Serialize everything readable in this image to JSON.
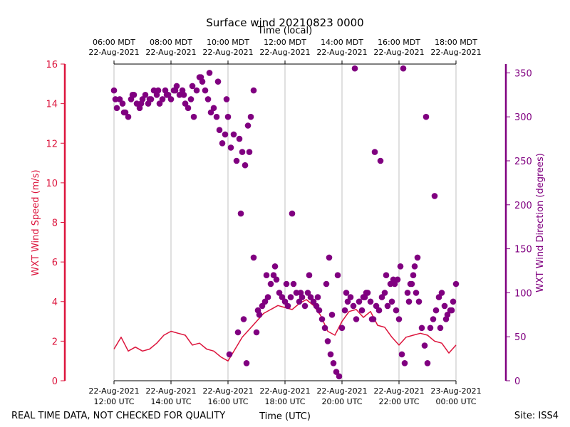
{
  "chart_data": {
    "type": "scatter",
    "title": "Surface wind 20210823 0000",
    "top_axis_label": "Time (local)",
    "xlabel": "Time (UTC)",
    "ylabel_left": "WXT Wind Speed (m/s)",
    "ylabel_right": "WXT Wind Direction (degrees)",
    "footer_left": "REAL TIME DATA, NOT CHECKED FOR QUALITY",
    "footer_right": "Site: ISS4",
    "xlim_hours_utc": [
      12,
      24
    ],
    "ylim_left": [
      0,
      16
    ],
    "ylim_right": [
      0,
      360
    ],
    "colors": {
      "speed": "#dc143c",
      "direction": "#800080",
      "grid": "#b0b0b0"
    },
    "left_ticks": [
      "0",
      "2",
      "4",
      "6",
      "8",
      "10",
      "12",
      "14",
      "16"
    ],
    "right_ticks": [
      "0",
      "50",
      "100",
      "150",
      "200",
      "250",
      "300",
      "350"
    ],
    "bottom_ticks": [
      {
        "hour": 12,
        "date": "22-Aug-2021",
        "time": "12:00 UTC"
      },
      {
        "hour": 14,
        "date": "22-Aug-2021",
        "time": "14:00 UTC"
      },
      {
        "hour": 16,
        "date": "22-Aug-2021",
        "time": "16:00 UTC"
      },
      {
        "hour": 18,
        "date": "22-Aug-2021",
        "time": "18:00 UTC"
      },
      {
        "hour": 20,
        "date": "22-Aug-2021",
        "time": "20:00 UTC"
      },
      {
        "hour": 22,
        "date": "22-Aug-2021",
        "time": "22:00 UTC"
      },
      {
        "hour": 24,
        "date": "23-Aug-2021",
        "time": "00:00 UTC"
      }
    ],
    "top_ticks": [
      {
        "hour": 12,
        "time": "06:00 MDT",
        "date": "22-Aug-2021"
      },
      {
        "hour": 14,
        "time": "08:00 MDT",
        "date": "22-Aug-2021"
      },
      {
        "hour": 16,
        "time": "10:00 MDT",
        "date": "22-Aug-2021"
      },
      {
        "hour": 18,
        "time": "12:00 MDT",
        "date": "22-Aug-2021"
      },
      {
        "hour": 20,
        "time": "14:00 MDT",
        "date": "22-Aug-2021"
      },
      {
        "hour": 22,
        "time": "16:00 MDT",
        "date": "22-Aug-2021"
      },
      {
        "hour": 24,
        "time": "18:00 MDT",
        "date": "22-Aug-2021"
      }
    ],
    "speed_series": {
      "name": "WXT Wind Speed",
      "x_hours": [
        12.0,
        12.25,
        12.5,
        12.75,
        13.0,
        13.25,
        13.5,
        13.75,
        14.0,
        14.25,
        14.5,
        14.75,
        15.0,
        15.25,
        15.5,
        15.75,
        16.0,
        16.25,
        16.5,
        16.75,
        17.0,
        17.25,
        17.5,
        17.75,
        18.0,
        18.25,
        18.5,
        18.75,
        19.0,
        19.25,
        19.5,
        19.75,
        20.0,
        20.25,
        20.5,
        20.75,
        21.0,
        21.25,
        21.5,
        21.75,
        22.0,
        22.25,
        22.5,
        22.75,
        23.0,
        23.25,
        23.5,
        23.75,
        24.0
      ],
      "values": [
        1.6,
        2.2,
        1.5,
        1.7,
        1.5,
        1.6,
        1.9,
        2.3,
        2.5,
        2.4,
        2.3,
        1.8,
        1.9,
        1.6,
        1.5,
        1.2,
        1.0,
        1.6,
        2.2,
        2.6,
        3.0,
        3.4,
        3.6,
        3.8,
        3.7,
        3.6,
        3.9,
        4.1,
        3.8,
        3.3,
        2.5,
        2.3,
        3.0,
        3.5,
        3.6,
        3.2,
        3.5,
        2.8,
        2.7,
        2.2,
        1.8,
        2.2,
        2.3,
        2.4,
        2.3,
        2.0,
        1.9,
        1.4,
        1.8
      ]
    },
    "direction_series": {
      "name": "WXT Wind Direction",
      "x_hours": [
        12.0,
        12.1,
        12.2,
        12.3,
        12.4,
        12.5,
        12.6,
        12.7,
        12.8,
        12.9,
        13.0,
        13.1,
        13.2,
        13.3,
        13.4,
        13.5,
        13.6,
        13.7,
        13.8,
        13.9,
        14.0,
        14.1,
        14.2,
        14.3,
        14.4,
        14.5,
        14.6,
        14.7,
        14.8,
        14.9,
        15.0,
        15.1,
        15.2,
        15.3,
        15.4,
        15.5,
        15.6,
        15.7,
        15.8,
        15.9,
        16.0,
        16.1,
        16.2,
        16.3,
        16.4,
        16.5,
        16.6,
        16.7,
        16.8,
        16.9,
        17.0,
        17.1,
        17.2,
        17.3,
        17.4,
        17.5,
        17.6,
        17.7,
        17.8,
        17.9,
        18.0,
        18.1,
        18.2,
        18.3,
        18.4,
        18.5,
        18.6,
        18.7,
        18.8,
        18.9,
        19.0,
        19.1,
        19.2,
        19.3,
        19.4,
        19.5,
        19.6,
        19.7,
        19.8,
        19.9,
        20.0,
        20.1,
        20.2,
        20.3,
        20.4,
        20.5,
        20.6,
        20.7,
        20.8,
        20.9,
        21.0,
        21.1,
        21.2,
        21.3,
        21.4,
        21.5,
        21.6,
        21.7,
        21.8,
        21.9,
        22.0,
        22.1,
        22.2,
        22.3,
        22.4,
        22.5,
        22.6,
        22.7,
        22.8,
        22.9,
        23.0,
        23.1,
        23.2,
        23.3,
        23.4,
        23.5,
        23.6,
        23.7,
        23.8,
        23.9,
        24.0,
        12.05,
        12.35,
        12.65,
        12.95,
        13.25,
        13.55,
        13.85,
        14.15,
        14.45,
        14.75,
        15.05,
        15.35,
        15.65,
        15.95,
        16.05,
        16.35,
        16.45,
        16.55,
        16.65,
        16.75,
        16.9,
        17.05,
        17.35,
        17.65,
        18.05,
        18.25,
        18.55,
        18.85,
        19.15,
        19.45,
        19.55,
        19.65,
        19.85,
        20.15,
        20.45,
        20.75,
        20.85,
        21.05,
        21.15,
        21.35,
        21.55,
        21.75,
        21.85,
        21.95,
        22.05,
        22.15,
        22.35,
        22.45,
        22.55,
        22.65,
        22.95,
        23.25,
        23.45,
        23.65,
        23.85
      ],
      "values": [
        330,
        310,
        320,
        315,
        305,
        300,
        320,
        325,
        315,
        310,
        320,
        325,
        315,
        320,
        330,
        325,
        315,
        320,
        330,
        325,
        320,
        330,
        335,
        325,
        330,
        315,
        310,
        320,
        300,
        330,
        345,
        340,
        330,
        320,
        305,
        310,
        300,
        285,
        270,
        280,
        300,
        265,
        280,
        250,
        275,
        260,
        245,
        290,
        300,
        330,
        55,
        75,
        85,
        90,
        95,
        110,
        120,
        115,
        100,
        95,
        90,
        85,
        95,
        110,
        100,
        90,
        95,
        85,
        100,
        95,
        90,
        85,
        80,
        70,
        60,
        45,
        30,
        20,
        10,
        5,
        60,
        80,
        90,
        95,
        85,
        70,
        90,
        80,
        95,
        100,
        90,
        70,
        85,
        80,
        95,
        100,
        85,
        110,
        115,
        80,
        70,
        30,
        20,
        100,
        110,
        120,
        100,
        90,
        60,
        40,
        20,
        60,
        70,
        80,
        95,
        100,
        85,
        75,
        80,
        90,
        110,
        320,
        305,
        325,
        315,
        320,
        330,
        325,
        330,
        325,
        335,
        345,
        350,
        340,
        320,
        30,
        55,
        190,
        70,
        20,
        260,
        140,
        80,
        120,
        130,
        110,
        190,
        100,
        120,
        95,
        110,
        140,
        75,
        120,
        100,
        355,
        95,
        100,
        70,
        260,
        250,
        120,
        90,
        110,
        115,
        130,
        355,
        90,
        110,
        130,
        140,
        300,
        210,
        60,
        70,
        80
      ]
    }
  }
}
